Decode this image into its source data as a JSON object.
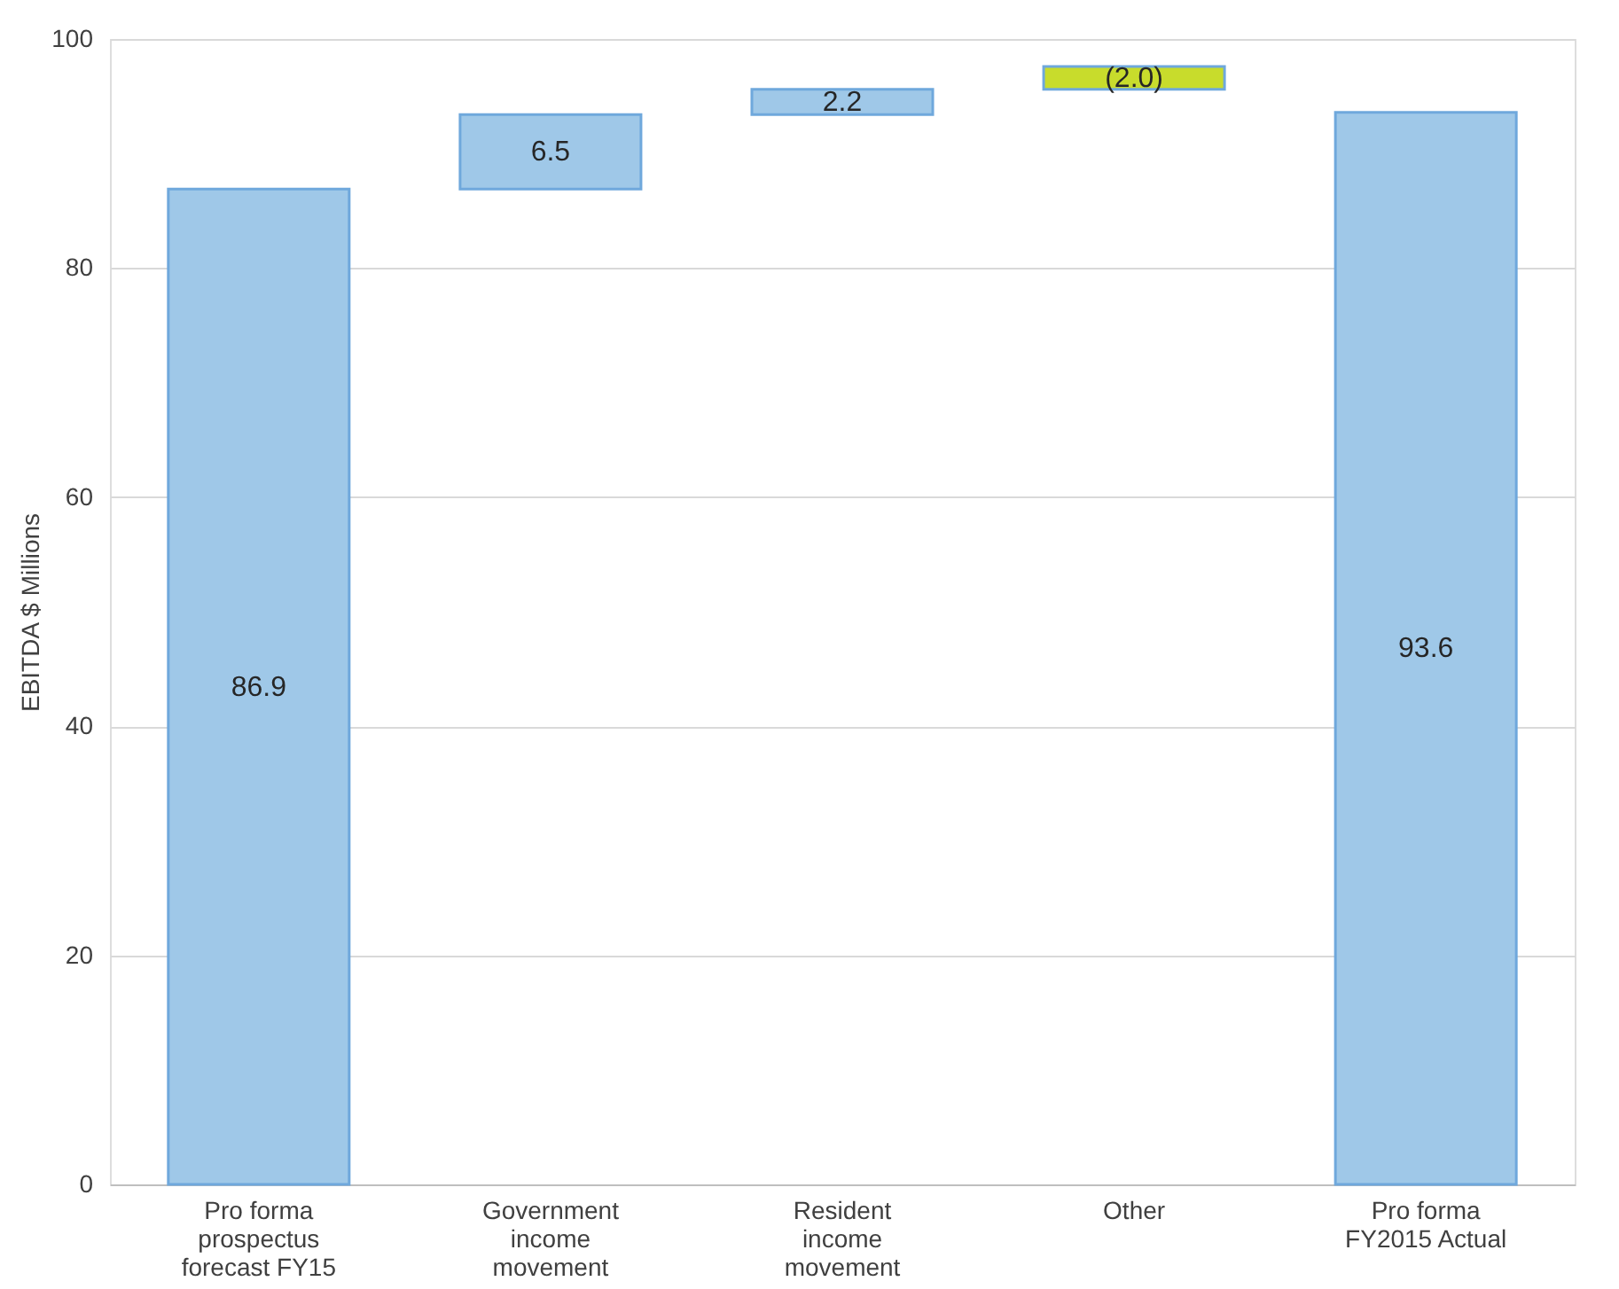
{
  "chart_data": {
    "type": "bar",
    "ylabel": "EBITDA $ Millions",
    "categories": [
      "Pro forma prospectus forecast FY15",
      "Government income movement",
      "Resident income movement",
      "Other",
      "Pro forma FY2015 Actual"
    ],
    "values": [
      86.9,
      6.5,
      2.2,
      -2.0,
      93.6
    ],
    "base": [
      0,
      86.9,
      93.4,
      97.6,
      0
    ],
    "colors": [
      "#9fc8e8",
      "#9fc8e8",
      "#9fc8e8",
      "#c8dc2c",
      "#9fc8e8"
    ],
    "value_labels": [
      "86.9",
      "6.5",
      "2.2",
      "(2.0)",
      "93.6"
    ],
    "ylim": [
      0,
      100
    ],
    "yticks": [
      0,
      20,
      40,
      60,
      80,
      100
    ],
    "grid": "y"
  }
}
